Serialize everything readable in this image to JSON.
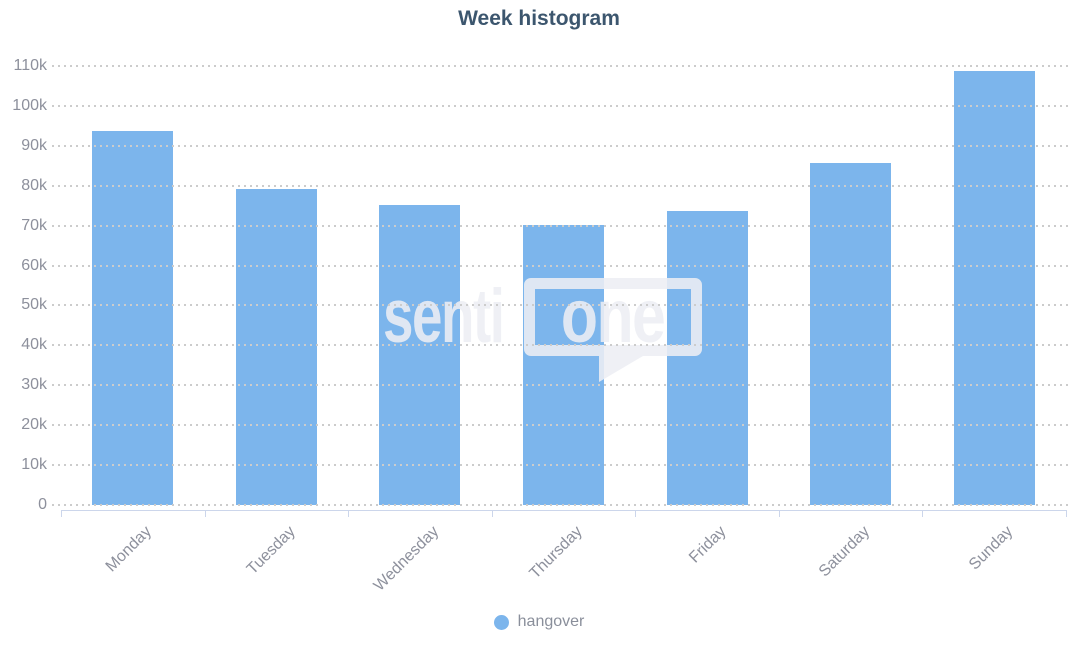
{
  "title": {
    "text": "Week histogram"
  },
  "chart_data": {
    "type": "bar",
    "title": "Week histogram",
    "categories": [
      "Monday",
      "Tuesday",
      "Wednesday",
      "Thursday",
      "Friday",
      "Saturday",
      "Sunday"
    ],
    "series": [
      {
        "name": "hangover",
        "values": [
          94000,
          79500,
          75500,
          70500,
          74000,
          86000,
          109000
        ]
      }
    ],
    "ylim": [
      0,
      110000
    ],
    "ytick_step": 10000,
    "ytick_labels": [
      "0",
      "10k",
      "20k",
      "30k",
      "40k",
      "50k",
      "60k",
      "70k",
      "80k",
      "90k",
      "100k",
      "110k"
    ],
    "grid": "horizontal-dotted",
    "legend_position": "bottom"
  },
  "legend": {
    "items": [
      {
        "label": "hangover",
        "color": "#7cb5ec"
      }
    ]
  },
  "watermark": {
    "prefix": "senti",
    "boxed": "one"
  },
  "colors": {
    "bar": "#7cb5ec",
    "title": "#3c566e",
    "axis_labels": "#8d909c",
    "axis_line": "#ccd6eb",
    "gridline": "#cccccc",
    "legend_text": "#8a8f9b",
    "watermark": "#edeff4",
    "background": "#ffffff"
  }
}
